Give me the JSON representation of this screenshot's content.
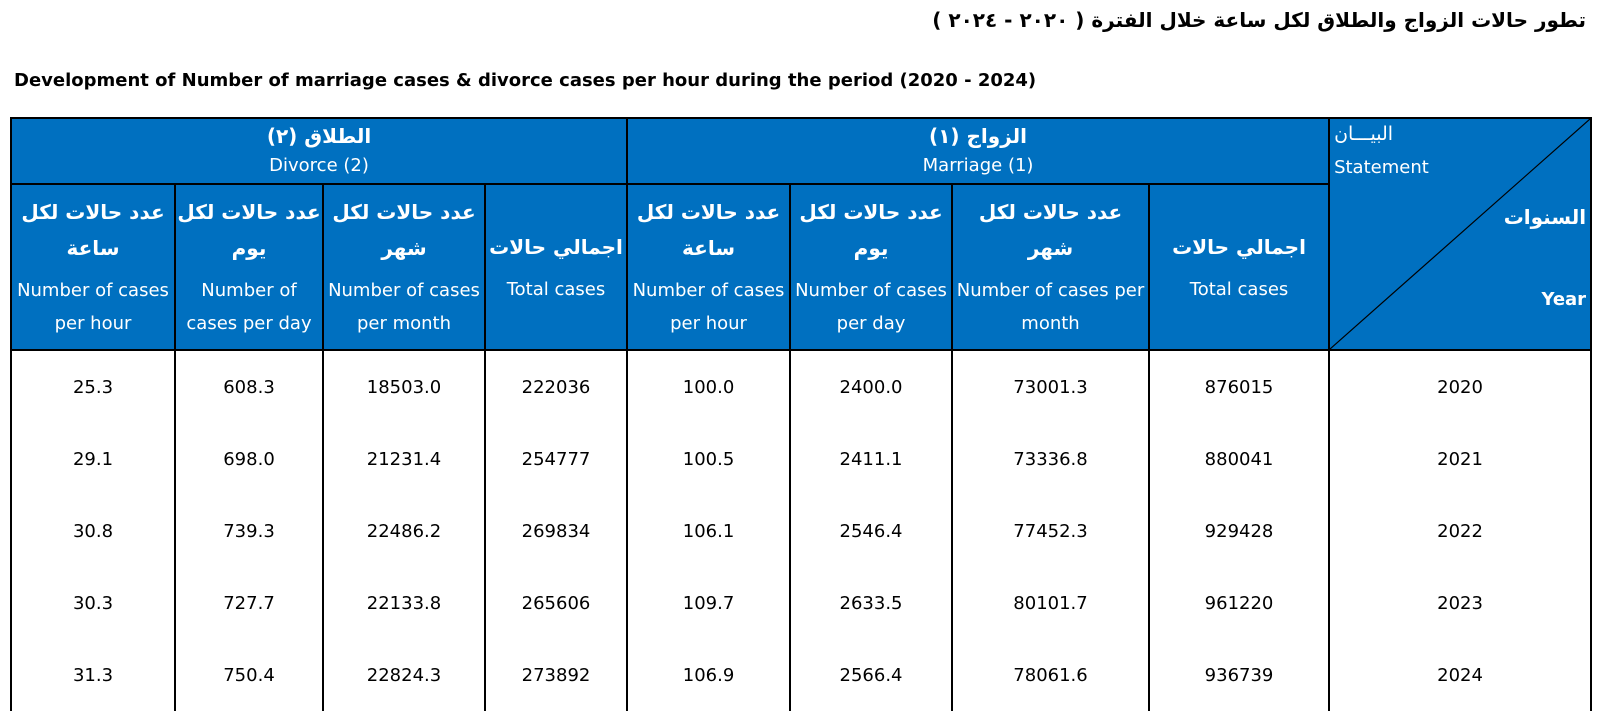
{
  "title_ar": "تطور حالات الزواج والطلاق لكل ساعة  خلال الفترة ( ٢٠٢٠ - ٢٠٢٤ )",
  "title_en": "Development of Number of marriage cases  & divorce cases per hour during the period (2020 - 2024)",
  "header": {
    "divorce_ar": "الطلاق        (٢)",
    "divorce_en": "Divorce  (2)",
    "marriage_ar": "الزواج        (١)",
    "marriage_en": "Marriage (1)",
    "statement_ar": "البيـــان",
    "statement_en": "Statement",
    "years_ar": "السنوات",
    "year_en": "Year",
    "per_hour_ar": "عدد حالات لكل ساعة",
    "per_hour_en": "Number of cases per hour",
    "per_day_div_ar": "عدد حالات لكل يوم",
    "per_day_mar_ar": "عدد حالات لكل يوم",
    "per_day_en": "Number of cases per day",
    "per_month_ar": "عدد حالات لكل شهر",
    "per_month_en": "Number of cases per month",
    "total_ar": "اجمالي حالات",
    "total_en": "Total cases"
  },
  "rows": [
    {
      "year": "2020",
      "m_total": "876015",
      "m_month": "73001.3",
      "m_day": "2400.0",
      "m_hour": "100.0",
      "d_total": "222036",
      "d_month": "18503.0",
      "d_day": "608.3",
      "d_hour": "25.3"
    },
    {
      "year": "2021",
      "m_total": "880041",
      "m_month": "73336.8",
      "m_day": "2411.1",
      "m_hour": "100.5",
      "d_total": "254777",
      "d_month": "21231.4",
      "d_day": "698.0",
      "d_hour": "29.1"
    },
    {
      "year": "2022",
      "m_total": "929428",
      "m_month": "77452.3",
      "m_day": "2546.4",
      "m_hour": "106.1",
      "d_total": "269834",
      "d_month": "22486.2",
      "d_day": "739.3",
      "d_hour": "30.8"
    },
    {
      "year": "2023",
      "m_total": "961220",
      "m_month": "80101.7",
      "m_day": "2633.5",
      "m_hour": "109.7",
      "d_total": "265606",
      "d_month": "22133.8",
      "d_day": "727.7",
      "d_hour": "30.3"
    },
    {
      "year": "2024",
      "m_total": "936739",
      "m_month": "78061.6",
      "m_day": "2566.4",
      "m_hour": "106.9",
      "d_total": "273892",
      "d_month": "22824.3",
      "d_day": "750.4",
      "d_hour": "31.3"
    }
  ]
}
